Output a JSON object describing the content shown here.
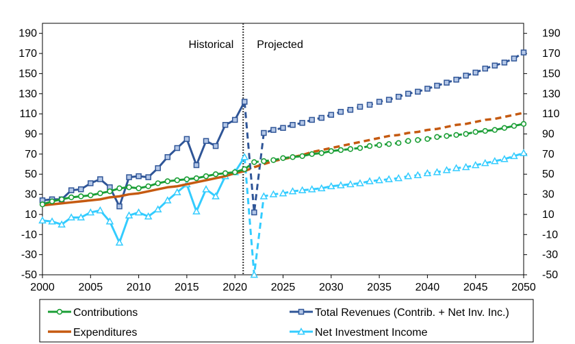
{
  "chart_data": {
    "type": "line",
    "title": "",
    "xlabel": "",
    "ylabel": "",
    "xlim": [
      2000,
      2050
    ],
    "ylim": [
      -50,
      200
    ],
    "x_ticks": [
      2000,
      2005,
      2010,
      2015,
      2020,
      2025,
      2030,
      2035,
      2040,
      2045,
      2050
    ],
    "y_ticks": [
      -50,
      -30,
      -10,
      10,
      30,
      50,
      70,
      90,
      110,
      130,
      150,
      170,
      190
    ],
    "grid": false,
    "right_axis": true,
    "divider_year": 2021,
    "annotations": {
      "left": "Historical",
      "right": "Projected"
    },
    "legend_position": "bottom",
    "series": [
      {
        "name": "Contributions",
        "color": "#1a9e35",
        "marker": "circle",
        "historical": [
          [
            2000,
            20
          ],
          [
            2001,
            23
          ],
          [
            2002,
            25
          ],
          [
            2003,
            27
          ],
          [
            2004,
            28
          ],
          [
            2005,
            29
          ],
          [
            2006,
            31
          ],
          [
            2007,
            33
          ],
          [
            2008,
            36
          ],
          [
            2009,
            37
          ],
          [
            2010,
            36
          ],
          [
            2011,
            38
          ],
          [
            2012,
            41
          ],
          [
            2013,
            43
          ],
          [
            2014,
            44
          ],
          [
            2015,
            45
          ],
          [
            2016,
            46
          ],
          [
            2017,
            48
          ],
          [
            2018,
            50
          ],
          [
            2019,
            51
          ],
          [
            2020,
            52
          ],
          [
            2021,
            55
          ]
        ],
        "projected": [
          [
            2022,
            62
          ],
          [
            2023,
            63
          ],
          [
            2024,
            64
          ],
          [
            2025,
            66
          ],
          [
            2026,
            67
          ],
          [
            2027,
            68
          ],
          [
            2028,
            70
          ],
          [
            2029,
            71
          ],
          [
            2030,
            73
          ],
          [
            2031,
            74
          ],
          [
            2032,
            75
          ],
          [
            2033,
            76
          ],
          [
            2034,
            78
          ],
          [
            2035,
            79
          ],
          [
            2036,
            80
          ],
          [
            2037,
            81
          ],
          [
            2038,
            83
          ],
          [
            2039,
            84
          ],
          [
            2040,
            85
          ],
          [
            2041,
            87
          ],
          [
            2042,
            88
          ],
          [
            2043,
            89
          ],
          [
            2044,
            90
          ],
          [
            2045,
            92
          ],
          [
            2046,
            93
          ],
          [
            2047,
            94
          ],
          [
            2048,
            96
          ],
          [
            2049,
            98
          ],
          [
            2050,
            100
          ]
        ]
      },
      {
        "name": "Expenditures",
        "color": "#c55a11",
        "marker": "none",
        "historical": [
          [
            2000,
            19
          ],
          [
            2001,
            20
          ],
          [
            2002,
            21
          ],
          [
            2003,
            22
          ],
          [
            2004,
            23
          ],
          [
            2005,
            24
          ],
          [
            2006,
            25
          ],
          [
            2007,
            27
          ],
          [
            2008,
            28
          ],
          [
            2009,
            30
          ],
          [
            2010,
            31
          ],
          [
            2011,
            33
          ],
          [
            2012,
            35
          ],
          [
            2013,
            37
          ],
          [
            2014,
            38
          ],
          [
            2015,
            40
          ],
          [
            2016,
            42
          ],
          [
            2017,
            44
          ],
          [
            2018,
            46
          ],
          [
            2019,
            48
          ],
          [
            2020,
            51
          ],
          [
            2021,
            53
          ]
        ],
        "projected": [
          [
            2022,
            57
          ],
          [
            2023,
            60
          ],
          [
            2024,
            63
          ],
          [
            2025,
            65
          ],
          [
            2026,
            67
          ],
          [
            2027,
            69
          ],
          [
            2028,
            72
          ],
          [
            2029,
            74
          ],
          [
            2030,
            76
          ],
          [
            2031,
            78
          ],
          [
            2032,
            80
          ],
          [
            2033,
            82
          ],
          [
            2034,
            84
          ],
          [
            2035,
            86
          ],
          [
            2036,
            88
          ],
          [
            2037,
            89
          ],
          [
            2038,
            91
          ],
          [
            2039,
            92
          ],
          [
            2040,
            94
          ],
          [
            2041,
            95
          ],
          [
            2042,
            97
          ],
          [
            2043,
            99
          ],
          [
            2044,
            100
          ],
          [
            2045,
            102
          ],
          [
            2046,
            104
          ],
          [
            2047,
            105
          ],
          [
            2048,
            107
          ],
          [
            2049,
            109
          ],
          [
            2050,
            111
          ]
        ]
      },
      {
        "name": "Total Revenues (Contrib. + Net Inv. Inc.)",
        "color": "#2f5597",
        "marker": "square",
        "historical": [
          [
            2000,
            24
          ],
          [
            2001,
            25
          ],
          [
            2002,
            25
          ],
          [
            2003,
            34
          ],
          [
            2004,
            35
          ],
          [
            2005,
            41
          ],
          [
            2006,
            45
          ],
          [
            2007,
            37
          ],
          [
            2008,
            18
          ],
          [
            2009,
            47
          ],
          [
            2010,
            48
          ],
          [
            2011,
            47
          ],
          [
            2012,
            56
          ],
          [
            2013,
            67
          ],
          [
            2014,
            76
          ],
          [
            2015,
            85
          ],
          [
            2016,
            59
          ],
          [
            2017,
            83
          ],
          [
            2018,
            78
          ],
          [
            2019,
            99
          ],
          [
            2020,
            104
          ],
          [
            2021,
            122
          ]
        ],
        "projected": [
          [
            2022,
            12
          ],
          [
            2023,
            91
          ],
          [
            2024,
            94
          ],
          [
            2025,
            96
          ],
          [
            2026,
            99
          ],
          [
            2027,
            101
          ],
          [
            2028,
            104
          ],
          [
            2029,
            106
          ],
          [
            2030,
            109
          ],
          [
            2031,
            112
          ],
          [
            2032,
            114
          ],
          [
            2033,
            117
          ],
          [
            2034,
            119
          ],
          [
            2035,
            122
          ],
          [
            2036,
            124
          ],
          [
            2037,
            127
          ],
          [
            2038,
            130
          ],
          [
            2039,
            132
          ],
          [
            2040,
            135
          ],
          [
            2041,
            138
          ],
          [
            2042,
            141
          ],
          [
            2043,
            144
          ],
          [
            2044,
            148
          ],
          [
            2045,
            151
          ],
          [
            2046,
            155
          ],
          [
            2047,
            158
          ],
          [
            2048,
            161
          ],
          [
            2049,
            165
          ],
          [
            2050,
            171
          ]
        ]
      },
      {
        "name": "Net Investment Income",
        "color": "#33ccff",
        "marker": "triangle",
        "historical": [
          [
            2000,
            4
          ],
          [
            2001,
            3
          ],
          [
            2002,
            0
          ],
          [
            2003,
            7
          ],
          [
            2004,
            7
          ],
          [
            2005,
            12
          ],
          [
            2006,
            14
          ],
          [
            2007,
            3
          ],
          [
            2008,
            -18
          ],
          [
            2009,
            9
          ],
          [
            2010,
            12
          ],
          [
            2011,
            8
          ],
          [
            2012,
            15
          ],
          [
            2013,
            24
          ],
          [
            2014,
            32
          ],
          [
            2015,
            40
          ],
          [
            2016,
            13
          ],
          [
            2017,
            35
          ],
          [
            2018,
            28
          ],
          [
            2019,
            48
          ],
          [
            2020,
            52
          ],
          [
            2021,
            67
          ]
        ],
        "projected": [
          [
            2022,
            -50
          ],
          [
            2023,
            28
          ],
          [
            2024,
            30
          ],
          [
            2025,
            31
          ],
          [
            2026,
            33
          ],
          [
            2027,
            34
          ],
          [
            2028,
            35
          ],
          [
            2029,
            36
          ],
          [
            2030,
            38
          ],
          [
            2031,
            39
          ],
          [
            2032,
            40
          ],
          [
            2033,
            41
          ],
          [
            2034,
            43
          ],
          [
            2035,
            44
          ],
          [
            2036,
            45
          ],
          [
            2037,
            46
          ],
          [
            2038,
            48
          ],
          [
            2039,
            49
          ],
          [
            2040,
            51
          ],
          [
            2041,
            52
          ],
          [
            2042,
            54
          ],
          [
            2043,
            56
          ],
          [
            2044,
            57
          ],
          [
            2045,
            59
          ],
          [
            2046,
            61
          ],
          [
            2047,
            63
          ],
          [
            2048,
            65
          ],
          [
            2049,
            68
          ],
          [
            2050,
            71
          ]
        ]
      }
    ]
  }
}
